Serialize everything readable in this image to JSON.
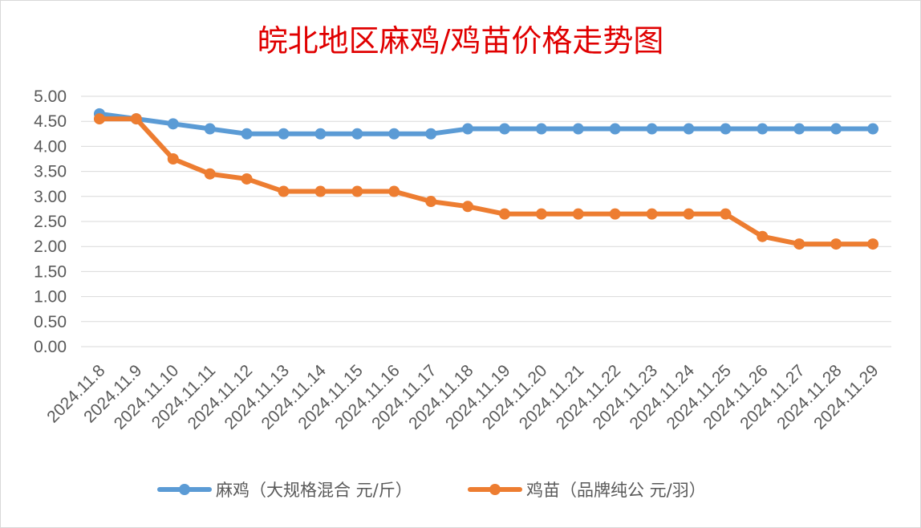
{
  "chart_data": {
    "type": "line",
    "title": "皖北地区麻鸡/鸡苗价格走势图",
    "categories": [
      "2024.11.8",
      "2024.11.9",
      "2024.11.10",
      "2024.11.11",
      "2024.11.12",
      "2024.11.13",
      "2024.11.14",
      "2024.11.15",
      "2024.11.16",
      "2024.11.17",
      "2024.11.18",
      "2024.11.19",
      "2024.11.20",
      "2024.11.21",
      "2024.11.22",
      "2024.11.23",
      "2024.11.24",
      "2024.11.25",
      "2024.11.26",
      "2024.11.27",
      "2024.11.28",
      "2024.11.29"
    ],
    "series": [
      {
        "name": "麻鸡（大规格混合 元/斤）",
        "color": "#5b9bd5",
        "values": [
          4.65,
          4.55,
          4.45,
          4.35,
          4.25,
          4.25,
          4.25,
          4.25,
          4.25,
          4.25,
          4.35,
          4.35,
          4.35,
          4.35,
          4.35,
          4.35,
          4.35,
          4.35,
          4.35,
          4.35,
          4.35,
          4.35
        ]
      },
      {
        "name": "鸡苗（品牌纯公 元/羽）",
        "color": "#ed7d31",
        "values": [
          4.55,
          4.55,
          3.75,
          3.45,
          3.35,
          3.1,
          3.1,
          3.1,
          3.1,
          2.9,
          2.8,
          2.65,
          2.65,
          2.65,
          2.65,
          2.65,
          2.65,
          2.65,
          2.2,
          2.05,
          2.05,
          2.05
        ]
      }
    ],
    "yticks": [
      "0.00",
      "0.50",
      "1.00",
      "1.50",
      "2.00",
      "2.50",
      "3.00",
      "3.50",
      "4.00",
      "4.50",
      "5.00"
    ],
    "ylim": [
      0,
      5
    ],
    "grid": true,
    "legend_position": "bottom",
    "title_color": "#e00000"
  }
}
